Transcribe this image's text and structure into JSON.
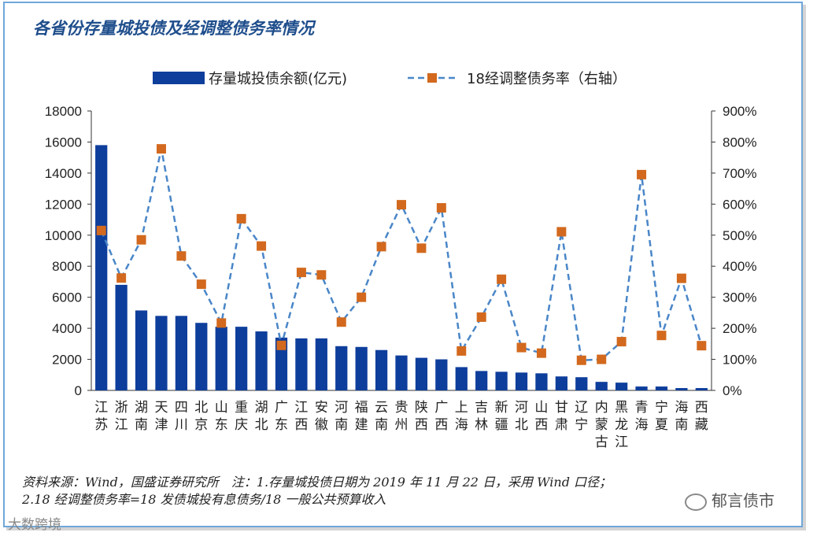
{
  "title": "各省份存量城投债及经调整债务率情况",
  "source_line1": "资料来源：Wind，国盛证券研究所　注：1.存量城投债日期为 2019 年 11 月 22 日，采用 Wind 口径；",
  "source_line2": "2.18 经调整债务率=18 发债城投有息债务/18 一般公共预算收入",
  "watermark_wechat": "郁言债市",
  "watermark_corner": "大数跨境",
  "chart_data": {
    "type": "bar",
    "categories": [
      "江苏",
      "浙江",
      "湖南",
      "天津",
      "四川",
      "北京",
      "山东",
      "重庆",
      "湖北",
      "广东",
      "江西",
      "安徽",
      "河南",
      "福建",
      "云南",
      "贵州",
      "陕西",
      "广西",
      "上海",
      "吉林",
      "新疆",
      "河北",
      "山西",
      "甘肃",
      "辽宁",
      "内蒙古",
      "黑龙江",
      "青海",
      "宁夏",
      "海南",
      "西藏"
    ],
    "series": [
      {
        "name": "存量城投债余额(亿元)",
        "type": "bar",
        "axis": "left",
        "color": "#0e3e9c",
        "values": [
          15800,
          6800,
          5150,
          4800,
          4800,
          4350,
          4100,
          4100,
          3800,
          3400,
          3350,
          3350,
          2850,
          2800,
          2600,
          2250,
          2100,
          2000,
          1500,
          1250,
          1200,
          1150,
          1100,
          900,
          850,
          550,
          500,
          250,
          250,
          150,
          150
        ]
      },
      {
        "name": "18经调整债务率（右轴）",
        "type": "line",
        "axis": "right",
        "color": "#4a86c8",
        "marker_color": "#d2691e",
        "values": [
          515,
          362,
          485,
          778,
          433,
          342,
          217,
          553,
          465,
          145,
          380,
          372,
          220,
          300,
          463,
          598,
          458,
          588,
          127,
          236,
          358,
          138,
          120,
          511,
          97,
          100,
          157,
          695,
          177,
          361,
          144
        ]
      }
    ],
    "y_left": {
      "min": 0,
      "max": 18000,
      "ticks": [
        "0",
        "2000",
        "4000",
        "6000",
        "8000",
        "10000",
        "12000",
        "14000",
        "16000",
        "18000"
      ]
    },
    "y_right": {
      "min": 0,
      "max": 900,
      "ticks": [
        "0%",
        "100%",
        "200%",
        "300%",
        "400%",
        "500%",
        "600%",
        "700%",
        "800%",
        "900%"
      ]
    },
    "legend_position": "top"
  }
}
